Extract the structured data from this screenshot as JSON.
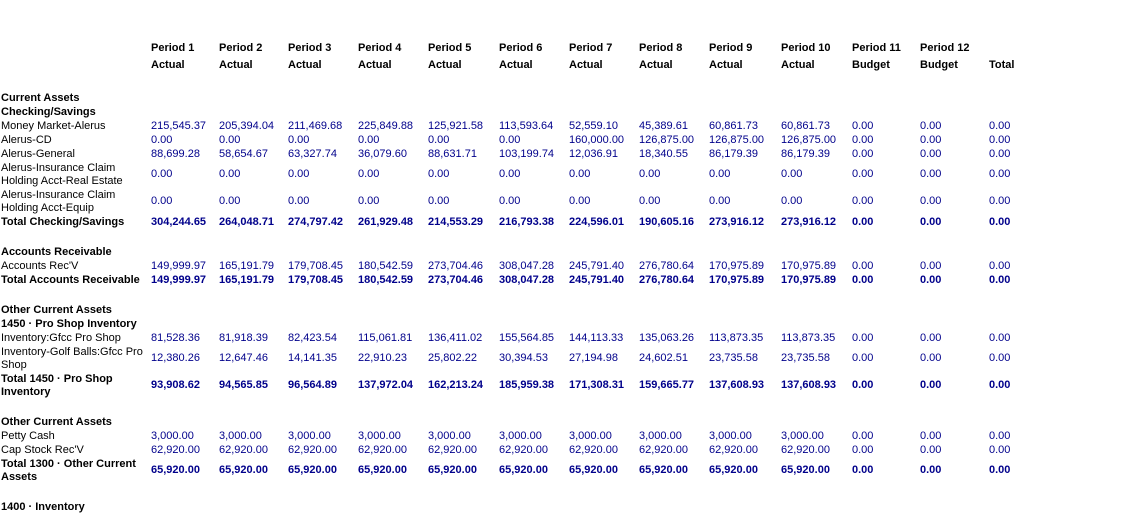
{
  "colors": {
    "value_text": "#00008b",
    "label_text": "#000000",
    "background": "#ffffff"
  },
  "report": {
    "columns": [
      {
        "label": "Period 1",
        "sub": "Actual"
      },
      {
        "label": "Period 2",
        "sub": "Actual"
      },
      {
        "label": "Period 3",
        "sub": "Actual"
      },
      {
        "label": "Period 4",
        "sub": "Actual"
      },
      {
        "label": "Period 5",
        "sub": "Actual"
      },
      {
        "label": "Period 6",
        "sub": "Actual"
      },
      {
        "label": "Period 7",
        "sub": "Actual"
      },
      {
        "label": "Period 8",
        "sub": "Actual"
      },
      {
        "label": "Period 9",
        "sub": "Actual"
      },
      {
        "label": "Period 10",
        "sub": "Actual"
      },
      {
        "label": "Period 11",
        "sub": "Budget"
      },
      {
        "label": "Period 12",
        "sub": "Budget"
      },
      {
        "label": "",
        "sub": "Total"
      }
    ],
    "rows": [
      {
        "type": "section",
        "lines": 1,
        "label": "Current Assets"
      },
      {
        "type": "section",
        "lines": 1,
        "label": "Checking/Savings"
      },
      {
        "type": "item",
        "lines": 1,
        "label": "Money Market-Alerus",
        "values": [
          "215,545.37",
          "205,394.04",
          "211,469.68",
          "225,849.88",
          "125,921.58",
          "113,593.64",
          "52,559.10",
          "45,389.61",
          "60,861.73",
          "60,861.73",
          "0.00",
          "0.00",
          "0.00"
        ]
      },
      {
        "type": "item",
        "lines": 1,
        "label": "Alerus-CD",
        "values": [
          "0.00",
          "0.00",
          "0.00",
          "0.00",
          "0.00",
          "0.00",
          "160,000.00",
          "126,875.00",
          "126,875.00",
          "126,875.00",
          "0.00",
          "0.00",
          "0.00"
        ]
      },
      {
        "type": "item",
        "lines": 1,
        "label": "Alerus-General",
        "values": [
          "88,699.28",
          "58,654.67",
          "63,327.74",
          "36,079.60",
          "88,631.71",
          "103,199.74",
          "12,036.91",
          "18,340.55",
          "86,179.39",
          "86,179.39",
          "0.00",
          "0.00",
          "0.00"
        ]
      },
      {
        "type": "item",
        "lines": 2,
        "label": "Alerus-Insurance Claim Holding Acct-Real Estate",
        "values": [
          "0.00",
          "0.00",
          "0.00",
          "0.00",
          "0.00",
          "0.00",
          "0.00",
          "0.00",
          "0.00",
          "0.00",
          "0.00",
          "0.00",
          "0.00"
        ]
      },
      {
        "type": "item",
        "lines": 2,
        "label": "Alerus-Insurance Claim Holding Acct-Equip",
        "values": [
          "0.00",
          "0.00",
          "0.00",
          "0.00",
          "0.00",
          "0.00",
          "0.00",
          "0.00",
          "0.00",
          "0.00",
          "0.00",
          "0.00",
          "0.00"
        ]
      },
      {
        "type": "total",
        "lines": 1,
        "label": "Total Checking/Savings",
        "values": [
          "304,244.65",
          "264,048.71",
          "274,797.42",
          "261,929.48",
          "214,553.29",
          "216,793.38",
          "224,596.01",
          "190,605.16",
          "273,916.12",
          "273,916.12",
          "0.00",
          "0.00",
          "0.00"
        ]
      },
      {
        "type": "spacer"
      },
      {
        "type": "section",
        "lines": 1,
        "label": "Accounts Receivable"
      },
      {
        "type": "item",
        "lines": 1,
        "label": "Accounts Rec'V",
        "values": [
          "149,999.97",
          "165,191.79",
          "179,708.45",
          "180,542.59",
          "273,704.46",
          "308,047.28",
          "245,791.40",
          "276,780.64",
          "170,975.89",
          "170,975.89",
          "0.00",
          "0.00",
          "0.00"
        ]
      },
      {
        "type": "total",
        "lines": 1,
        "label": "Total Accounts Receivable",
        "values": [
          "149,999.97",
          "165,191.79",
          "179,708.45",
          "180,542.59",
          "273,704.46",
          "308,047.28",
          "245,791.40",
          "276,780.64",
          "170,975.89",
          "170,975.89",
          "0.00",
          "0.00",
          "0.00"
        ]
      },
      {
        "type": "spacer"
      },
      {
        "type": "section",
        "lines": 1,
        "label": "Other Current Assets"
      },
      {
        "type": "section",
        "lines": 1,
        "label": "1450 · Pro Shop Inventory"
      },
      {
        "type": "item",
        "lines": 1,
        "label": "Inventory:Gfcc Pro Shop",
        "values": [
          "81,528.36",
          "81,918.39",
          "82,423.54",
          "115,061.81",
          "136,411.02",
          "155,564.85",
          "144,113.33",
          "135,063.26",
          "113,873.35",
          "113,873.35",
          "0.00",
          "0.00",
          "0.00"
        ]
      },
      {
        "type": "item",
        "lines": 2,
        "label": "Inventory-Golf Balls:Gfcc Pro Shop",
        "values": [
          "12,380.26",
          "12,647.46",
          "14,141.35",
          "22,910.23",
          "25,802.22",
          "30,394.53",
          "27,194.98",
          "24,602.51",
          "23,735.58",
          "23,735.58",
          "0.00",
          "0.00",
          "0.00"
        ]
      },
      {
        "type": "total",
        "lines": 2,
        "label": "Total 1450 · Pro Shop Inventory",
        "values": [
          "93,908.62",
          "94,565.85",
          "96,564.89",
          "137,972.04",
          "162,213.24",
          "185,959.38",
          "171,308.31",
          "159,665.77",
          "137,608.93",
          "137,608.93",
          "0.00",
          "0.00",
          "0.00"
        ]
      },
      {
        "type": "spacer"
      },
      {
        "type": "section",
        "lines": 1,
        "label": "Other Current Assets"
      },
      {
        "type": "item",
        "lines": 1,
        "label": "Petty Cash",
        "values": [
          "3,000.00",
          "3,000.00",
          "3,000.00",
          "3,000.00",
          "3,000.00",
          "3,000.00",
          "3,000.00",
          "3,000.00",
          "3,000.00",
          "3,000.00",
          "0.00",
          "0.00",
          "0.00"
        ]
      },
      {
        "type": "item",
        "lines": 1,
        "label": "Cap Stock Rec'V",
        "values": [
          "62,920.00",
          "62,920.00",
          "62,920.00",
          "62,920.00",
          "62,920.00",
          "62,920.00",
          "62,920.00",
          "62,920.00",
          "62,920.00",
          "62,920.00",
          "0.00",
          "0.00",
          "0.00"
        ]
      },
      {
        "type": "total",
        "lines": 2,
        "label": "Total 1300 · Other Current Assets",
        "values": [
          "65,920.00",
          "65,920.00",
          "65,920.00",
          "65,920.00",
          "65,920.00",
          "65,920.00",
          "65,920.00",
          "65,920.00",
          "65,920.00",
          "65,920.00",
          "0.00",
          "0.00",
          "0.00"
        ]
      },
      {
        "type": "spacer"
      },
      {
        "type": "clipped",
        "lines": 1,
        "label": "1400 · Inventory"
      }
    ]
  }
}
